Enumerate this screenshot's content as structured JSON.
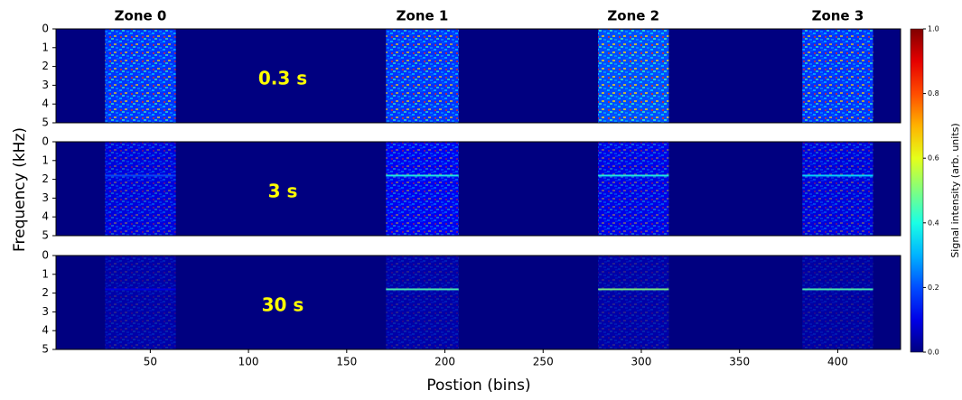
{
  "chart_data": {
    "type": "heatmap",
    "x_label": "Postion (bins)",
    "y_label": "Frequency (kHz)",
    "xlim": [
      2,
      432
    ],
    "xticks": [
      50,
      100,
      150,
      200,
      250,
      300,
      350,
      400
    ],
    "ylim": [
      0,
      5
    ],
    "yticks": [
      0,
      1,
      2,
      3,
      4,
      5
    ],
    "colormap": "jet",
    "colorbar": {
      "label": "Signal intensity (arb. units)",
      "lim": [
        0,
        1
      ],
      "ticks": [
        {
          "value": 0,
          "label": "0.0"
        },
        0.2,
        0.4,
        0.6,
        0.8,
        {
          "value": 1,
          "label": "1.0"
        }
      ]
    },
    "background_level": 0,
    "zones": [
      {
        "name": "Zone 0",
        "xrange": [
          27,
          63
        ]
      },
      {
        "name": "Zone 1",
        "xrange": [
          170,
          207
        ]
      },
      {
        "name": "Zone 2",
        "xrange": [
          278,
          314
        ]
      },
      {
        "name": "Zone 3",
        "xrange": [
          382,
          418
        ]
      }
    ],
    "panels": [
      {
        "label": "0.3 s",
        "zone_levels": [
          0.35,
          0.35,
          0.4,
          0.35
        ],
        "line_khz": null,
        "line_levels": null
      },
      {
        "label": "3 s",
        "zone_levels": [
          0.18,
          0.22,
          0.2,
          0.18
        ],
        "line_khz": 1.8,
        "line_levels": [
          0.2,
          0.4,
          0.4,
          0.35
        ]
      },
      {
        "label": "30 s",
        "zone_levels": [
          0.08,
          0.08,
          0.08,
          0.07
        ],
        "line_khz": 1.8,
        "line_levels": [
          0.1,
          0.45,
          0.5,
          0.45
        ]
      }
    ]
  }
}
